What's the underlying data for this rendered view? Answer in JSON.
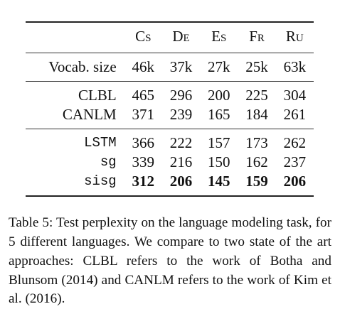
{
  "table": {
    "headers": {
      "cs": {
        "first": "C",
        "rest": "S"
      },
      "de": {
        "first": "D",
        "rest": "E"
      },
      "es": {
        "first": "E",
        "rest": "S"
      },
      "fr": {
        "first": "F",
        "rest": "R"
      },
      "ru": {
        "first": "R",
        "rest": "U"
      }
    },
    "vocab_row": {
      "label": "Vocab. size",
      "values": [
        "46k",
        "37k",
        "27k",
        "25k",
        "63k"
      ]
    },
    "baseline_rows": [
      {
        "label": "CLBL",
        "values": [
          "465",
          "296",
          "200",
          "225",
          "304"
        ]
      },
      {
        "label": "CANLM",
        "values": [
          "371",
          "239",
          "165",
          "184",
          "261"
        ]
      }
    ],
    "model_rows": [
      {
        "label": "LSTM",
        "values": [
          "366",
          "222",
          "157",
          "173",
          "262"
        ]
      },
      {
        "label": "sg",
        "values": [
          "339",
          "216",
          "150",
          "162",
          "237"
        ]
      },
      {
        "label": "sisg",
        "values": [
          "312",
          "206",
          "145",
          "159",
          "206"
        ]
      }
    ]
  },
  "caption": {
    "text": "Table 5: Test perplexity on the language modeling task, for 5 different languages. We compare to two state of the art approaches: CLBL refers to the work of Botha and Blunsom (2014) and CANLM refers to the work of Kim et al. (2016)."
  }
}
